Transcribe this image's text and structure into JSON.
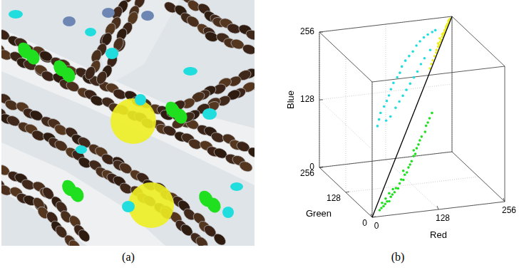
{
  "panels": [
    {
      "label": "(a)"
    },
    {
      "label": "(b)"
    }
  ],
  "chart_data": {
    "type": "scatter3d",
    "x_label": "Red",
    "y_label": "Green",
    "z_label": "Blue",
    "xlim": [
      0,
      256
    ],
    "ylim": [
      0,
      256
    ],
    "zlim": [
      0,
      256
    ],
    "xticks": [
      0,
      128,
      256
    ],
    "yticks": [
      0,
      128,
      256
    ],
    "zticks": [
      0,
      128,
      256
    ],
    "grid": true,
    "series": [
      {
        "color": "#1fdf1f",
        "marker": "dot",
        "points": [
          [
            20,
            14,
            6
          ],
          [
            25,
            18,
            8
          ],
          [
            30,
            20,
            10
          ],
          [
            35,
            25,
            12
          ],
          [
            40,
            28,
            15
          ],
          [
            45,
            30,
            14
          ],
          [
            50,
            35,
            20
          ],
          [
            55,
            40,
            22
          ],
          [
            60,
            42,
            25
          ],
          [
            65,
            48,
            30
          ],
          [
            70,
            50,
            28
          ],
          [
            75,
            55,
            35
          ],
          [
            80,
            60,
            40
          ],
          [
            85,
            62,
            38
          ],
          [
            90,
            68,
            45
          ],
          [
            95,
            70,
            48
          ],
          [
            100,
            75,
            55
          ],
          [
            105,
            80,
            58
          ],
          [
            110,
            85,
            62
          ],
          [
            115,
            88,
            70
          ],
          [
            120,
            92,
            72
          ],
          [
            125,
            98,
            80
          ],
          [
            130,
            102,
            85
          ],
          [
            135,
            108,
            90
          ],
          [
            140,
            112,
            95
          ],
          [
            150,
            120,
            100
          ],
          [
            155,
            128,
            108
          ],
          [
            160,
            132,
            112
          ],
          [
            165,
            136,
            118
          ],
          [
            172,
            142,
            125
          ],
          [
            38,
            30,
            20
          ],
          [
            58,
            45,
            30
          ],
          [
            88,
            70,
            52
          ],
          [
            118,
            95,
            78
          ],
          [
            28,
            22,
            16
          ],
          [
            48,
            38,
            26
          ]
        ]
      },
      {
        "color": "#22dddd",
        "marker": "dot",
        "points": [
          [
            50,
            100,
            130
          ],
          [
            55,
            105,
            140
          ],
          [
            60,
            110,
            150
          ],
          [
            70,
            118,
            158
          ],
          [
            78,
            125,
            165
          ],
          [
            85,
            132,
            172
          ],
          [
            92,
            140,
            180
          ],
          [
            100,
            148,
            188
          ],
          [
            110,
            155,
            195
          ],
          [
            118,
            162,
            200
          ],
          [
            125,
            170,
            208
          ],
          [
            135,
            178,
            215
          ],
          [
            145,
            185,
            220
          ],
          [
            155,
            192,
            225
          ],
          [
            165,
            200,
            232
          ],
          [
            175,
            208,
            236
          ],
          [
            185,
            214,
            240
          ],
          [
            195,
            220,
            242
          ],
          [
            205,
            224,
            244
          ],
          [
            212,
            226,
            246
          ],
          [
            95,
            125,
            150
          ],
          [
            105,
            132,
            158
          ],
          [
            115,
            140,
            165
          ],
          [
            125,
            148,
            172
          ],
          [
            135,
            155,
            180
          ],
          [
            145,
            162,
            188
          ],
          [
            155,
            170,
            195
          ],
          [
            165,
            178,
            205
          ],
          [
            175,
            186,
            212
          ],
          [
            190,
            196,
            222
          ],
          [
            80,
            112,
            140
          ],
          [
            70,
            108,
            135
          ]
        ]
      },
      {
        "color": "#eeee22",
        "marker": "dot",
        "points": [
          [
            185,
            185,
            192
          ],
          [
            190,
            190,
            198
          ],
          [
            195,
            196,
            202
          ],
          [
            200,
            200,
            208
          ],
          [
            205,
            205,
            212
          ],
          [
            208,
            210,
            215
          ],
          [
            212,
            212,
            220
          ],
          [
            215,
            216,
            222
          ],
          [
            218,
            218,
            226
          ],
          [
            222,
            222,
            228
          ],
          [
            225,
            226,
            232
          ],
          [
            228,
            228,
            235
          ],
          [
            230,
            232,
            236
          ],
          [
            233,
            234,
            240
          ],
          [
            236,
            236,
            242
          ],
          [
            238,
            240,
            244
          ],
          [
            240,
            241,
            246
          ],
          [
            242,
            243,
            248
          ],
          [
            245,
            245,
            250
          ],
          [
            246,
            248,
            252
          ],
          [
            248,
            249,
            252
          ],
          [
            250,
            251,
            254
          ],
          [
            220,
            225,
            230
          ],
          [
            232,
            230,
            238
          ],
          [
            214,
            218,
            224
          ],
          [
            226,
            228,
            236
          ]
        ]
      },
      {
        "type": "line",
        "color": "#000000",
        "line_style": "solid",
        "points": [
          [
            0,
            0,
            0
          ],
          [
            256,
            256,
            256
          ]
        ]
      }
    ]
  }
}
